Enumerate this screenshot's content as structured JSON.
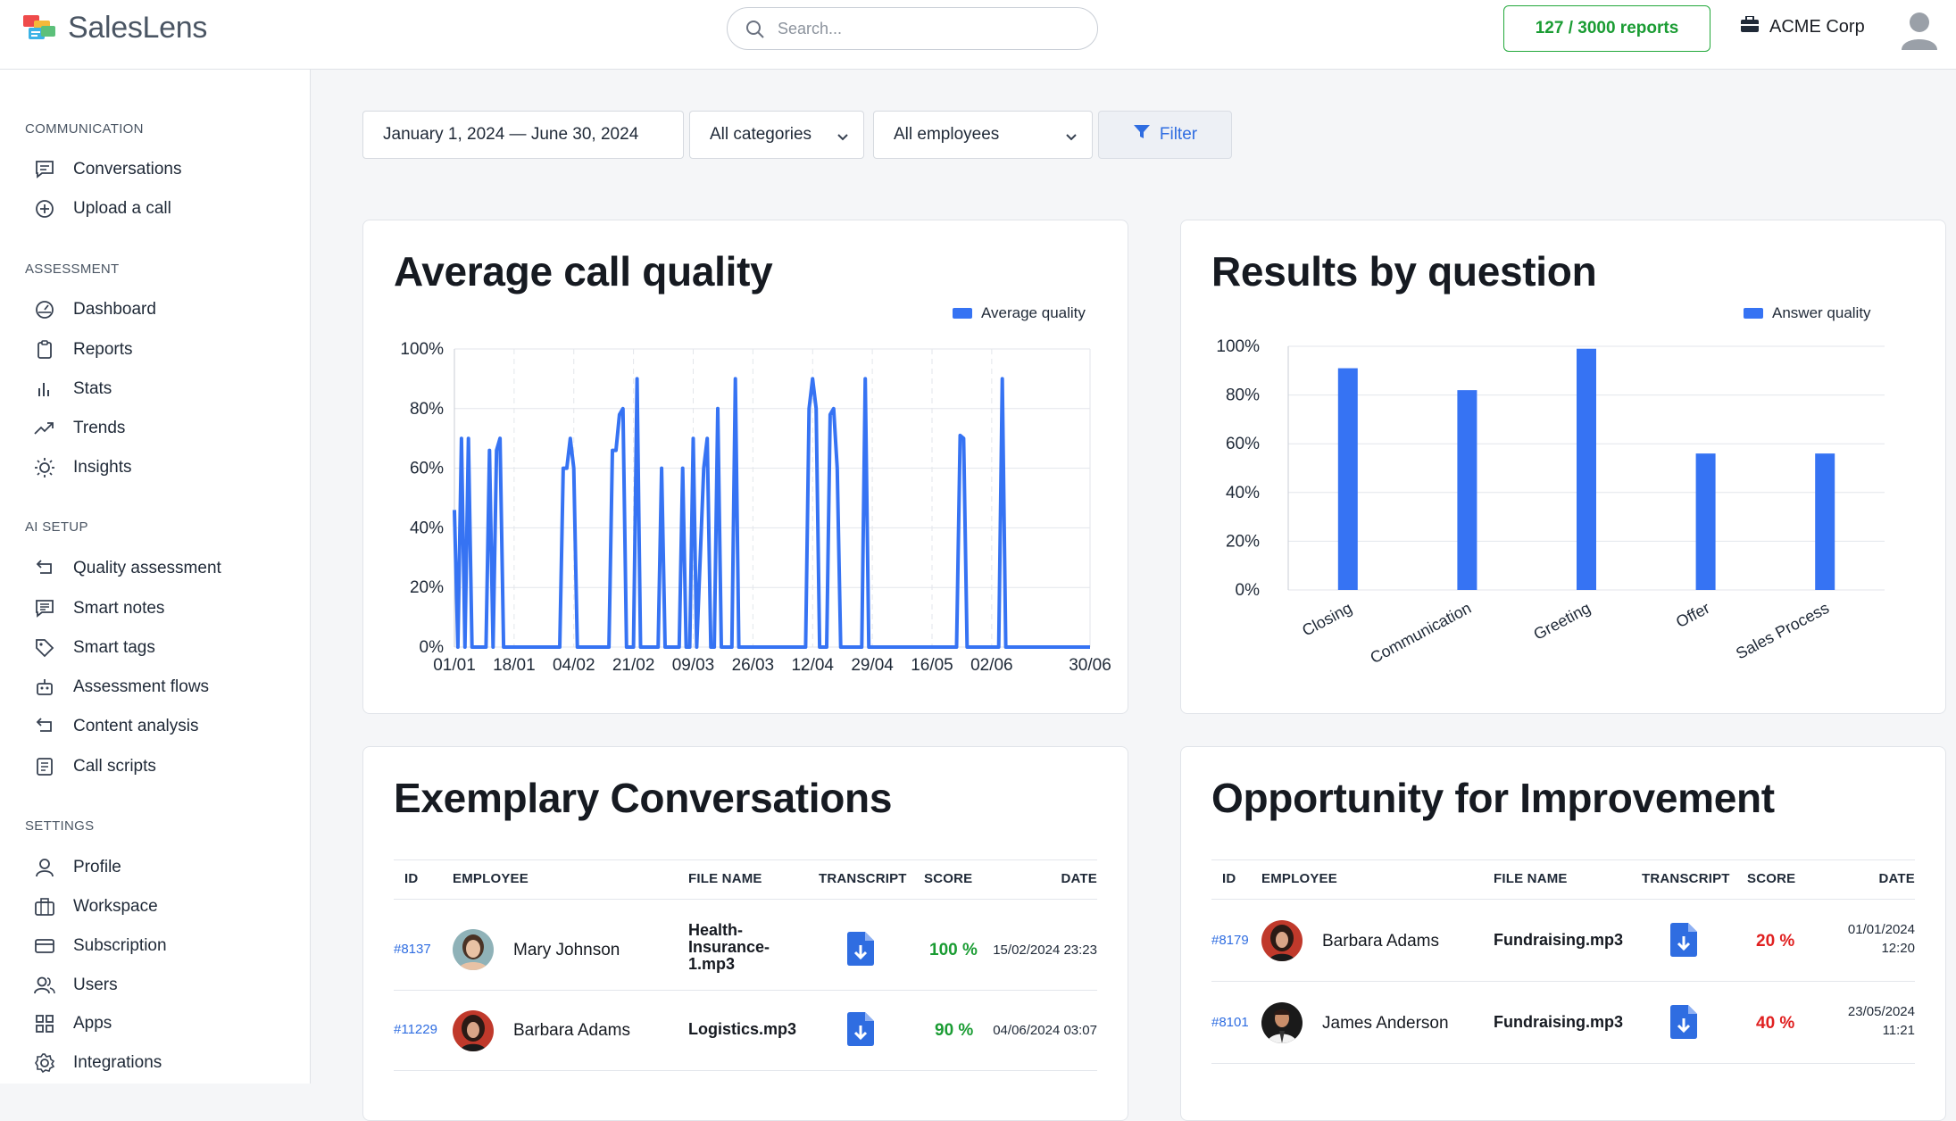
{
  "header": {
    "app_name": "SalesLens",
    "search_placeholder": "Search...",
    "reports_usage": "127 / 3000 reports",
    "org_name": "ACME Corp"
  },
  "sidebar": {
    "sections": [
      {
        "label": "COMMUNICATION",
        "items": [
          {
            "label": "Conversations",
            "icon": "chat-icon"
          },
          {
            "label": "Upload a call",
            "icon": "upload-icon"
          }
        ]
      },
      {
        "label": "ASSESSMENT",
        "items": [
          {
            "label": "Dashboard",
            "icon": "gauge-icon"
          },
          {
            "label": "Reports",
            "icon": "clipboard-icon"
          },
          {
            "label": "Stats",
            "icon": "bar-chart-icon"
          },
          {
            "label": "Trends",
            "icon": "trend-icon"
          },
          {
            "label": "Insights",
            "icon": "sun-icon"
          }
        ]
      },
      {
        "label": "AI SETUP",
        "items": [
          {
            "label": "Quality assessment",
            "icon": "loop-icon"
          },
          {
            "label": "Smart notes",
            "icon": "notes-icon"
          },
          {
            "label": "Smart tags",
            "icon": "tag-icon"
          },
          {
            "label": "Assessment flows",
            "icon": "robot-icon"
          },
          {
            "label": "Content analysis",
            "icon": "loop-icon"
          },
          {
            "label": "Call scripts",
            "icon": "script-icon"
          }
        ]
      },
      {
        "label": "SETTINGS",
        "items": [
          {
            "label": "Profile",
            "icon": "user-icon"
          },
          {
            "label": "Workspace",
            "icon": "briefcase-icon"
          },
          {
            "label": "Subscription",
            "icon": "card-icon"
          },
          {
            "label": "Users",
            "icon": "users-icon"
          },
          {
            "label": "Apps",
            "icon": "grid-icon"
          },
          {
            "label": "Integrations",
            "icon": "gear-icon"
          }
        ]
      }
    ]
  },
  "filters": {
    "date_range": "January 1, 2024 — June 30, 2024",
    "category": "All categories",
    "employee": "All employees",
    "filter_label": "Filter"
  },
  "colors": {
    "accent": "#3673f3",
    "good": "#1a9c33",
    "bad": "#e02020"
  },
  "quality_card": {
    "title": "Average call quality"
  },
  "results_card": {
    "title": "Results by question"
  },
  "chart_data": [
    {
      "type": "line",
      "title": "Average call quality",
      "series": [
        {
          "name": "Average quality"
        }
      ],
      "xlim": [
        0,
        181
      ],
      "ylim": [
        0,
        100
      ],
      "y_ticks": [
        "0%",
        "20%",
        "40%",
        "60%",
        "80%",
        "100%"
      ],
      "x_tick_labels": [
        "01/01",
        "18/01",
        "04/02",
        "21/02",
        "09/03",
        "26/03",
        "12/04",
        "29/04",
        "16/05",
        "02/06",
        "30/06"
      ],
      "x_tick_days": [
        0,
        17,
        34,
        51,
        68,
        85,
        102,
        119,
        136,
        153,
        181
      ],
      "points": [
        [
          0,
          46
        ],
        [
          1,
          0
        ],
        [
          2,
          70
        ],
        [
          3,
          0
        ],
        [
          4,
          70
        ],
        [
          5,
          0
        ],
        [
          9,
          0
        ],
        [
          10,
          66
        ],
        [
          11,
          0
        ],
        [
          12,
          66
        ],
        [
          13,
          70
        ],
        [
          14,
          0
        ],
        [
          30,
          0
        ],
        [
          31,
          60
        ],
        [
          32,
          60
        ],
        [
          33,
          70
        ],
        [
          34,
          60
        ],
        [
          35,
          0
        ],
        [
          44,
          0
        ],
        [
          45,
          66
        ],
        [
          46,
          66
        ],
        [
          47,
          78
        ],
        [
          48,
          80
        ],
        [
          49,
          0
        ],
        [
          51,
          0
        ],
        [
          52,
          90
        ],
        [
          53,
          0
        ],
        [
          58,
          0
        ],
        [
          59,
          60
        ],
        [
          60,
          0
        ],
        [
          64,
          0
        ],
        [
          65,
          60
        ],
        [
          66,
          0
        ],
        [
          67,
          0
        ],
        [
          68,
          70
        ],
        [
          69,
          0
        ],
        [
          71,
          60
        ],
        [
          72,
          70
        ],
        [
          73,
          0
        ],
        [
          74,
          0
        ],
        [
          75,
          80
        ],
        [
          76,
          0
        ],
        [
          79,
          0
        ],
        [
          80,
          90
        ],
        [
          81,
          0
        ],
        [
          100,
          0
        ],
        [
          101,
          80
        ],
        [
          102,
          90
        ],
        [
          103,
          80
        ],
        [
          104,
          0
        ],
        [
          106,
          0
        ],
        [
          107,
          78
        ],
        [
          108,
          80
        ],
        [
          109,
          60
        ],
        [
          110,
          0
        ],
        [
          116,
          0
        ],
        [
          117,
          90
        ],
        [
          118,
          0
        ],
        [
          143,
          0
        ],
        [
          144,
          71
        ],
        [
          145,
          70
        ],
        [
          146,
          0
        ],
        [
          155,
          0
        ],
        [
          156,
          90
        ],
        [
          157,
          0
        ],
        [
          181,
          0
        ]
      ],
      "legend_position": "top-right",
      "grid": true
    },
    {
      "type": "bar",
      "title": "Results by question",
      "series": [
        {
          "name": "Answer quality",
          "values": [
            91,
            82,
            99,
            56,
            56
          ]
        }
      ],
      "categories": [
        "Closing",
        "Communication",
        "Greeting",
        "Offer",
        "Sales Process"
      ],
      "ylim": [
        0,
        100
      ],
      "y_ticks": [
        "0%",
        "20%",
        "40%",
        "60%",
        "80%",
        "100%"
      ],
      "legend_position": "top-right",
      "grid": true
    }
  ],
  "exemplary": {
    "title": "Exemplary Conversations",
    "columns": [
      "ID",
      "EMPLOYEE",
      "FILE NAME",
      "TRANSCRIPT",
      "SCORE",
      "DATE"
    ],
    "rows": [
      {
        "id": "#8137",
        "employee": "Mary Johnson",
        "file": "Health-Insurance-1.mp3",
        "score": "100 %",
        "date": "15/02/2024 23:23"
      },
      {
        "id": "#11229",
        "employee": "Barbara Adams",
        "file": "Logistics.mp3",
        "score": "90 %",
        "date": "04/06/2024 03:07"
      }
    ]
  },
  "improvement": {
    "title": "Opportunity for Improvement",
    "columns": [
      "ID",
      "EMPLOYEE",
      "FILE NAME",
      "TRANSCRIPT",
      "SCORE",
      "DATE"
    ],
    "rows": [
      {
        "id": "#8179",
        "employee": "Barbara Adams",
        "file": "Fundraising.mp3",
        "score": "20 %",
        "date_line1": "01/01/2024",
        "date_line2": "12:20"
      },
      {
        "id": "#8101",
        "employee": "James Anderson",
        "file": "Fundraising.mp3",
        "score": "40 %",
        "date_line1": "23/05/2024",
        "date_line2": "11:21"
      }
    ]
  }
}
